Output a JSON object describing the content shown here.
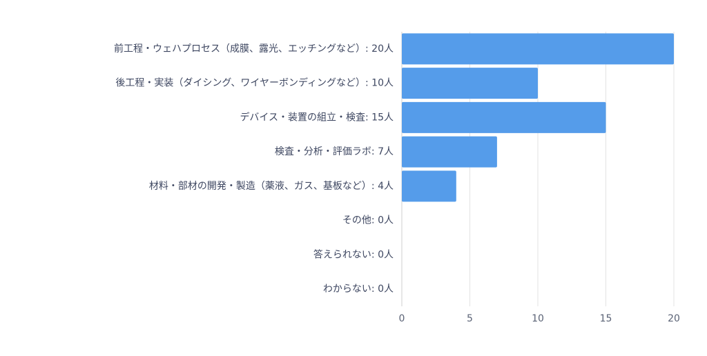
{
  "chart_data": {
    "type": "bar",
    "orientation": "horizontal",
    "categories": [
      "前工程・ウェハプロセス（成膜、露光、エッチングなど）: 20人",
      "後工程・実装（ダイシング、ワイヤーボンディングなど）: 10人",
      "デバイス・装置の組立・検査: 15人",
      "検査・分析・評価ラボ: 7人",
      "材料・部材の開発・製造（薬液、ガス、基板など）: 4人",
      "その他: 0人",
      "答えられない: 0人",
      "わからない: 0人"
    ],
    "values": [
      20,
      10,
      15,
      7,
      4,
      0,
      0,
      0
    ],
    "xlim": [
      0,
      20
    ],
    "xticks": [
      "0",
      "5",
      "10",
      "15",
      "20"
    ],
    "grid": true,
    "colors": {
      "bar": "#559cea",
      "grid": "#e3e3e3",
      "axis": "#cfcfcf",
      "label": "#3d4660",
      "tick": "#5a6275"
    }
  }
}
